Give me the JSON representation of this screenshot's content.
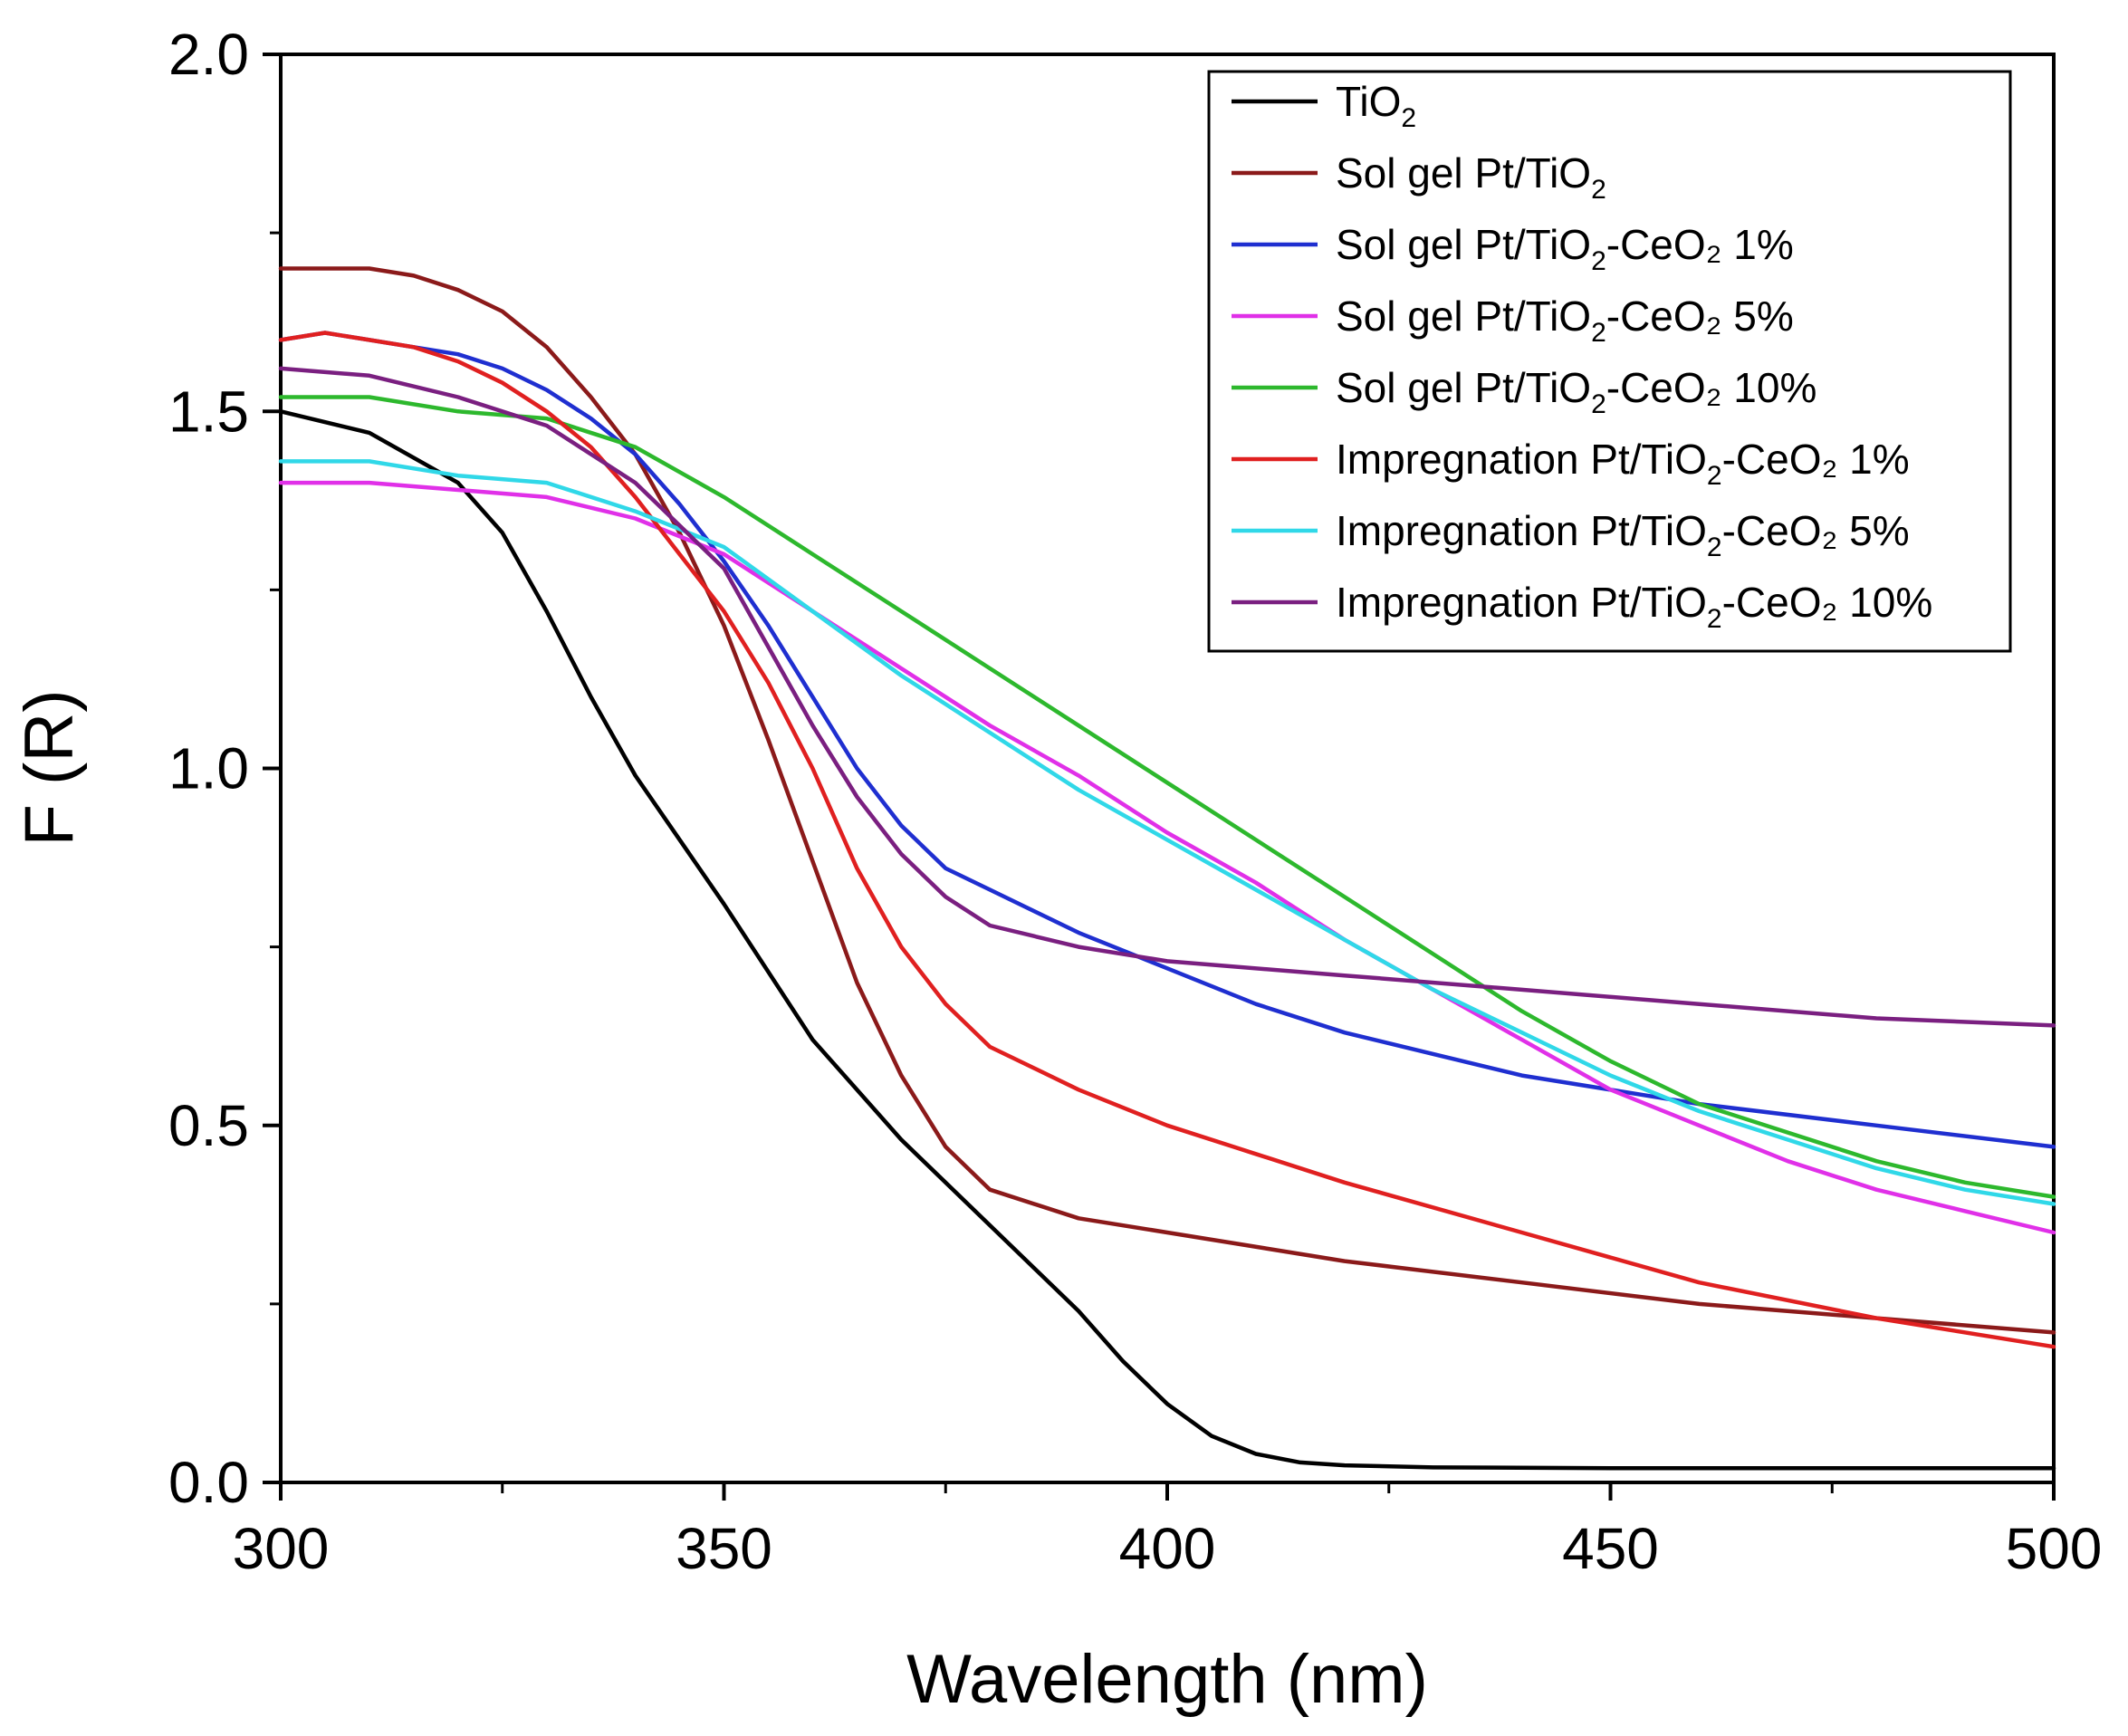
{
  "chart_data": {
    "type": "line",
    "title": "",
    "xlabel": "Wavelength (nm)",
    "ylabel": "F (R)",
    "xlim": [
      300,
      500
    ],
    "ylim": [
      0.0,
      2.0
    ],
    "x_ticks": [
      300,
      350,
      400,
      450,
      500
    ],
    "x_tick_labels": [
      "300",
      "350",
      "400",
      "450",
      "500"
    ],
    "x_minor_ticks": [
      325,
      375,
      425,
      475
    ],
    "y_ticks": [
      0.0,
      0.5,
      1.0,
      1.5,
      2.0
    ],
    "y_tick_labels": [
      "0.0",
      "0.5",
      "1.0",
      "1.5",
      "2.0"
    ],
    "y_minor_ticks": [
      0.25,
      0.75,
      1.25,
      1.75
    ],
    "grid": false,
    "legend_position": "top-right",
    "series": [
      {
        "name": "TiO2",
        "label_main": "TiO",
        "label_sub": "2",
        "label_tail": "",
        "color": "#000000",
        "points": [
          [
            300,
            1.5
          ],
          [
            310,
            1.47
          ],
          [
            320,
            1.4
          ],
          [
            325,
            1.33
          ],
          [
            330,
            1.22
          ],
          [
            335,
            1.1
          ],
          [
            340,
            0.99
          ],
          [
            350,
            0.81
          ],
          [
            360,
            0.62
          ],
          [
            370,
            0.48
          ],
          [
            380,
            0.36
          ],
          [
            385,
            0.3
          ],
          [
            390,
            0.24
          ],
          [
            395,
            0.17
          ],
          [
            400,
            0.11
          ],
          [
            405,
            0.065
          ],
          [
            410,
            0.04
          ],
          [
            415,
            0.028
          ],
          [
            420,
            0.024
          ],
          [
            430,
            0.021
          ],
          [
            450,
            0.02
          ],
          [
            500,
            0.02
          ]
        ]
      },
      {
        "name": "Sol gel Pt/TiO2",
        "label_main": "Sol gel Pt/TiO",
        "label_sub": "2",
        "label_tail": "",
        "color": "#8B1A1A",
        "points": [
          [
            300,
            1.7
          ],
          [
            305,
            1.7
          ],
          [
            310,
            1.7
          ],
          [
            315,
            1.69
          ],
          [
            320,
            1.67
          ],
          [
            325,
            1.64
          ],
          [
            330,
            1.59
          ],
          [
            335,
            1.52
          ],
          [
            340,
            1.44
          ],
          [
            345,
            1.33
          ],
          [
            350,
            1.2
          ],
          [
            355,
            1.04
          ],
          [
            360,
            0.87
          ],
          [
            365,
            0.7
          ],
          [
            370,
            0.57
          ],
          [
            375,
            0.47
          ],
          [
            380,
            0.41
          ],
          [
            390,
            0.37
          ],
          [
            400,
            0.35
          ],
          [
            420,
            0.31
          ],
          [
            440,
            0.28
          ],
          [
            460,
            0.25
          ],
          [
            480,
            0.23
          ],
          [
            500,
            0.21
          ]
        ]
      },
      {
        "name": "Sol gel Pt/TiO2-CeO2 1%",
        "label_main": "Sol gel Pt/TiO",
        "label_sub": "2",
        "label_tail": "-CeO₂ 1%",
        "color": "#1F2FD0",
        "points": [
          [
            300,
            1.6
          ],
          [
            305,
            1.61
          ],
          [
            310,
            1.6
          ],
          [
            315,
            1.59
          ],
          [
            320,
            1.58
          ],
          [
            325,
            1.56
          ],
          [
            330,
            1.53
          ],
          [
            335,
            1.49
          ],
          [
            340,
            1.44
          ],
          [
            345,
            1.37
          ],
          [
            350,
            1.29
          ],
          [
            355,
            1.2
          ],
          [
            360,
            1.1
          ],
          [
            365,
            1.0
          ],
          [
            370,
            0.92
          ],
          [
            375,
            0.86
          ],
          [
            380,
            0.83
          ],
          [
            390,
            0.77
          ],
          [
            400,
            0.72
          ],
          [
            410,
            0.67
          ],
          [
            420,
            0.63
          ],
          [
            430,
            0.6
          ],
          [
            440,
            0.57
          ],
          [
            460,
            0.53
          ],
          [
            480,
            0.5
          ],
          [
            500,
            0.47
          ]
        ]
      },
      {
        "name": "Sol gel Pt/TiO2-CeO2 5%",
        "label_main": "Sol gel Pt/TiO",
        "label_sub": "2",
        "label_tail": "-CeO₂ 5%",
        "color": "#E030E8",
        "points": [
          [
            300,
            1.4
          ],
          [
            310,
            1.4
          ],
          [
            320,
            1.39
          ],
          [
            330,
            1.38
          ],
          [
            340,
            1.35
          ],
          [
            350,
            1.3
          ],
          [
            360,
            1.22
          ],
          [
            370,
            1.14
          ],
          [
            380,
            1.06
          ],
          [
            390,
            0.99
          ],
          [
            400,
            0.91
          ],
          [
            410,
            0.84
          ],
          [
            420,
            0.76
          ],
          [
            430,
            0.69
          ],
          [
            440,
            0.62
          ],
          [
            450,
            0.55
          ],
          [
            460,
            0.5
          ],
          [
            470,
            0.45
          ],
          [
            480,
            0.41
          ],
          [
            490,
            0.38
          ],
          [
            500,
            0.35
          ]
        ]
      },
      {
        "name": "Sol gel Pt/TiO2-CeO2 10%",
        "label_main": "Sol gel Pt/TiO",
        "label_sub": "2",
        "label_tail": "-CeO₂ 10%",
        "color": "#2DB82D",
        "points": [
          [
            300,
            1.52
          ],
          [
            310,
            1.52
          ],
          [
            320,
            1.5
          ],
          [
            330,
            1.49
          ],
          [
            340,
            1.45
          ],
          [
            350,
            1.38
          ],
          [
            360,
            1.3
          ],
          [
            370,
            1.22
          ],
          [
            380,
            1.14
          ],
          [
            390,
            1.06
          ],
          [
            400,
            0.98
          ],
          [
            410,
            0.9
          ],
          [
            420,
            0.82
          ],
          [
            430,
            0.74
          ],
          [
            440,
            0.66
          ],
          [
            450,
            0.59
          ],
          [
            460,
            0.53
          ],
          [
            470,
            0.49
          ],
          [
            480,
            0.45
          ],
          [
            490,
            0.42
          ],
          [
            500,
            0.4
          ]
        ]
      },
      {
        "name": "Impregnation Pt/TiO2-CeO2 1%",
        "label_main": "Impregnation Pt/TiO",
        "label_sub": "2",
        "label_tail": "-CeO₂ 1%",
        "color": "#E02020",
        "points": [
          [
            300,
            1.6
          ],
          [
            305,
            1.61
          ],
          [
            310,
            1.6
          ],
          [
            315,
            1.59
          ],
          [
            320,
            1.57
          ],
          [
            325,
            1.54
          ],
          [
            330,
            1.5
          ],
          [
            335,
            1.45
          ],
          [
            340,
            1.38
          ],
          [
            345,
            1.3
          ],
          [
            350,
            1.22
          ],
          [
            355,
            1.12
          ],
          [
            360,
            1.0
          ],
          [
            365,
            0.86
          ],
          [
            370,
            0.75
          ],
          [
            375,
            0.67
          ],
          [
            380,
            0.61
          ],
          [
            390,
            0.55
          ],
          [
            400,
            0.5
          ],
          [
            410,
            0.46
          ],
          [
            420,
            0.42
          ],
          [
            440,
            0.35
          ],
          [
            460,
            0.28
          ],
          [
            480,
            0.23
          ],
          [
            500,
            0.19
          ]
        ]
      },
      {
        "name": "Impregnation Pt/TiO2-CeO2 5%",
        "label_main": "Impregnation Pt/TiO",
        "label_sub": "2",
        "label_tail": "-CeO₂ 5%",
        "color": "#30D8E8",
        "points": [
          [
            300,
            1.43
          ],
          [
            305,
            1.43
          ],
          [
            310,
            1.43
          ],
          [
            320,
            1.41
          ],
          [
            330,
            1.4
          ],
          [
            340,
            1.36
          ],
          [
            350,
            1.31
          ],
          [
            360,
            1.22
          ],
          [
            370,
            1.13
          ],
          [
            380,
            1.05
          ],
          [
            390,
            0.97
          ],
          [
            400,
            0.9
          ],
          [
            410,
            0.83
          ],
          [
            420,
            0.76
          ],
          [
            430,
            0.69
          ],
          [
            440,
            0.63
          ],
          [
            450,
            0.57
          ],
          [
            460,
            0.52
          ],
          [
            470,
            0.48
          ],
          [
            480,
            0.44
          ],
          [
            490,
            0.41
          ],
          [
            500,
            0.39
          ]
        ]
      },
      {
        "name": "Impregnation Pt/TiO2-CeO2 10%",
        "label_main": "Impregnation Pt/TiO",
        "label_sub": "2",
        "label_tail": "-CeO₂ 10%",
        "color": "#7A1F80",
        "points": [
          [
            300,
            1.56
          ],
          [
            310,
            1.55
          ],
          [
            320,
            1.52
          ],
          [
            330,
            1.48
          ],
          [
            340,
            1.4
          ],
          [
            350,
            1.28
          ],
          [
            355,
            1.17
          ],
          [
            360,
            1.06
          ],
          [
            365,
            0.96
          ],
          [
            370,
            0.88
          ],
          [
            375,
            0.82
          ],
          [
            380,
            0.78
          ],
          [
            390,
            0.75
          ],
          [
            400,
            0.73
          ],
          [
            420,
            0.71
          ],
          [
            440,
            0.69
          ],
          [
            460,
            0.67
          ],
          [
            480,
            0.65
          ],
          [
            500,
            0.64
          ]
        ]
      }
    ]
  }
}
